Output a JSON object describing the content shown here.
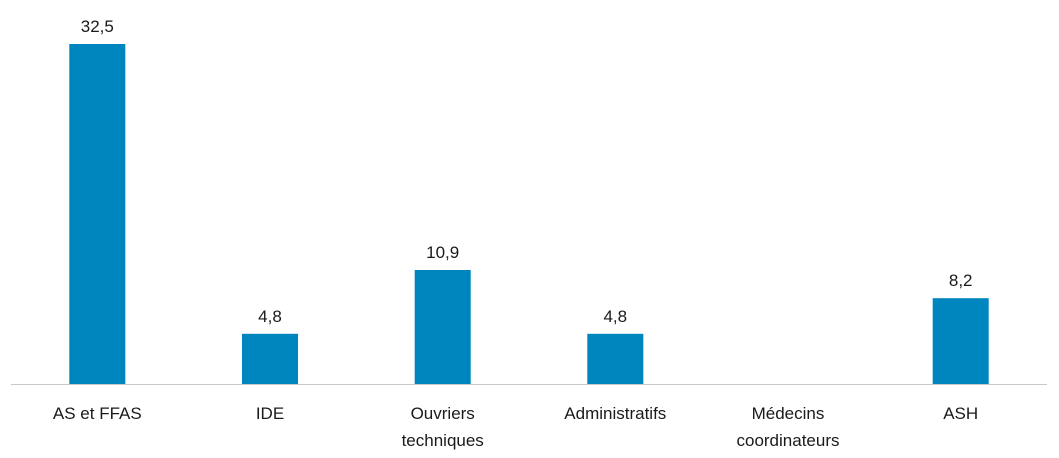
{
  "chart_data": {
    "type": "bar",
    "title": "",
    "xlabel": "",
    "ylabel": "",
    "categories": [
      [
        "AS et FFAS"
      ],
      [
        "IDE"
      ],
      [
        "Ouvriers",
        "techniques"
      ],
      [
        "Administratifs"
      ],
      [
        "Médecins",
        "coordinateurs"
      ],
      [
        "ASH"
      ]
    ],
    "values": [
      32.5,
      4.8,
      10.9,
      4.8,
      null,
      8.2
    ],
    "data_labels": [
      "32,5",
      "4,8",
      "10,9",
      "4,8",
      "",
      "8,2"
    ],
    "ylim": [
      0,
      32.5
    ],
    "grid": false,
    "legend": "none",
    "bar_color": "#0086be",
    "axis_color": "#c8c8c8"
  }
}
